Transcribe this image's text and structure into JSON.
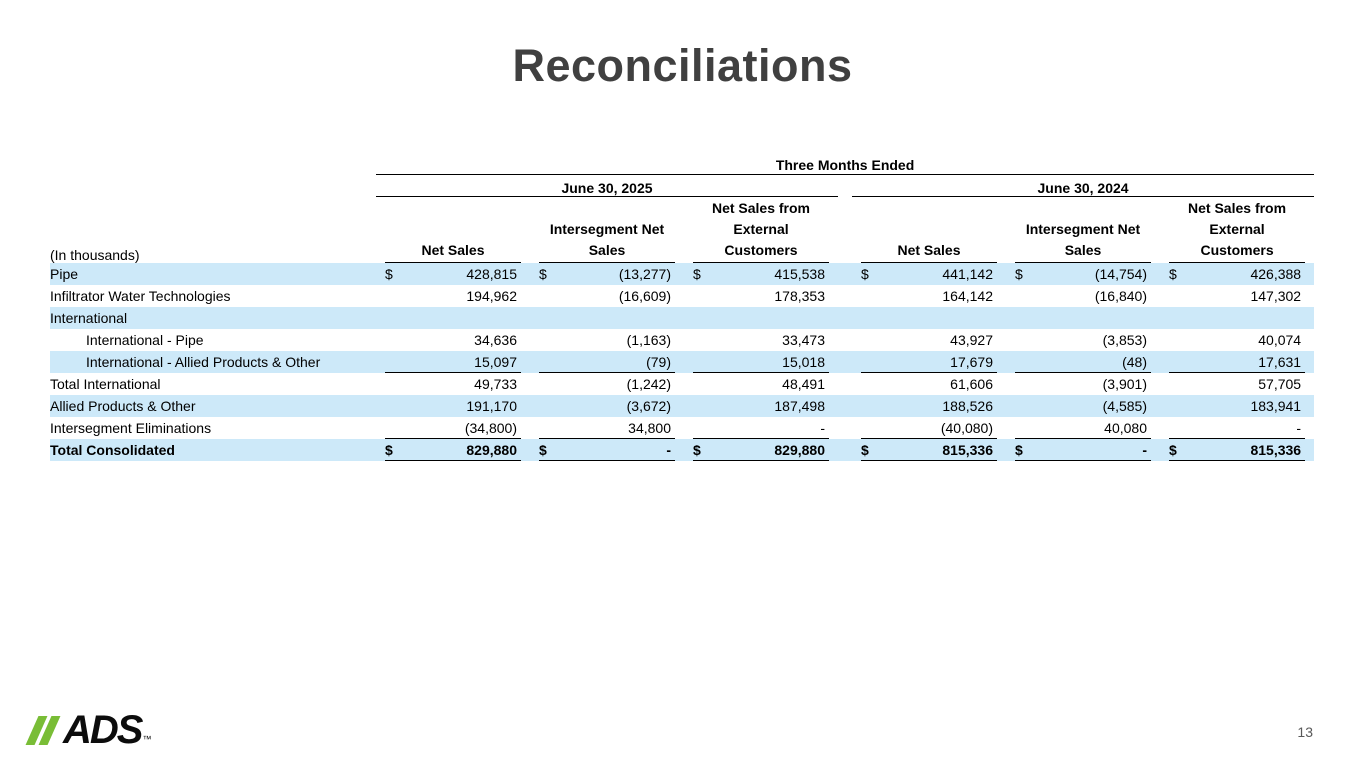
{
  "slide": {
    "title": "Reconciliations",
    "page_number": "13"
  },
  "logo": {
    "brand": "ADS",
    "trademark": "™",
    "accent_green": "#79BD36"
  },
  "colors": {
    "row_band_blue": "#CDE9F9",
    "title_gray": "#404040",
    "border_black": "#000000"
  },
  "table": {
    "in_thousands_label": "(In thousands)",
    "period_header": "Three Months Ended",
    "groups": [
      {
        "label": "June 30, 2025",
        "columns": [
          "Net Sales",
          "Intersegment Net\nSales",
          "Net Sales from\nExternal\nCustomers"
        ]
      },
      {
        "label": "June 30, 2024",
        "columns": [
          "Net Sales",
          "Intersegment Net\nSales",
          "Net Sales from\nExternal\nCustomers"
        ]
      }
    ],
    "rows": [
      {
        "label": "Pipe",
        "indent": false,
        "bold": false,
        "shaded": true,
        "underline": false,
        "cells": [
          {
            "currency": "$",
            "value": "428,815"
          },
          {
            "currency": "$",
            "value": "(13,277)"
          },
          {
            "currency": "$",
            "value": "415,538"
          },
          {
            "currency": "$",
            "value": "441,142"
          },
          {
            "currency": "$",
            "value": "(14,754)"
          },
          {
            "currency": "$",
            "value": "426,388"
          }
        ]
      },
      {
        "label": "Infiltrator Water Technologies",
        "indent": false,
        "bold": false,
        "shaded": false,
        "underline": false,
        "cells": [
          {
            "currency": "",
            "value": "194,962"
          },
          {
            "currency": "",
            "value": "(16,609)"
          },
          {
            "currency": "",
            "value": "178,353"
          },
          {
            "currency": "",
            "value": "164,142"
          },
          {
            "currency": "",
            "value": "(16,840)"
          },
          {
            "currency": "",
            "value": "147,302"
          }
        ]
      },
      {
        "label": "International",
        "indent": false,
        "bold": false,
        "shaded": true,
        "underline": false,
        "cells": [
          {
            "currency": "",
            "value": ""
          },
          {
            "currency": "",
            "value": ""
          },
          {
            "currency": "",
            "value": ""
          },
          {
            "currency": "",
            "value": ""
          },
          {
            "currency": "",
            "value": ""
          },
          {
            "currency": "",
            "value": ""
          }
        ]
      },
      {
        "label": "International - Pipe",
        "indent": true,
        "bold": false,
        "shaded": false,
        "underline": false,
        "cells": [
          {
            "currency": "",
            "value": "34,636"
          },
          {
            "currency": "",
            "value": "(1,163)"
          },
          {
            "currency": "",
            "value": "33,473"
          },
          {
            "currency": "",
            "value": "43,927"
          },
          {
            "currency": "",
            "value": "(3,853)"
          },
          {
            "currency": "",
            "value": "40,074"
          }
        ]
      },
      {
        "label": "International - Allied Products & Other",
        "indent": true,
        "bold": false,
        "shaded": true,
        "underline": true,
        "cells": [
          {
            "currency": "",
            "value": "15,097"
          },
          {
            "currency": "",
            "value": "(79)"
          },
          {
            "currency": "",
            "value": "15,018"
          },
          {
            "currency": "",
            "value": "17,679"
          },
          {
            "currency": "",
            "value": "(48)"
          },
          {
            "currency": "",
            "value": "17,631"
          }
        ]
      },
      {
        "label": "Total International",
        "indent": false,
        "bold": false,
        "shaded": false,
        "underline": false,
        "cells": [
          {
            "currency": "",
            "value": "49,733"
          },
          {
            "currency": "",
            "value": "(1,242)"
          },
          {
            "currency": "",
            "value": "48,491"
          },
          {
            "currency": "",
            "value": "61,606"
          },
          {
            "currency": "",
            "value": "(3,901)"
          },
          {
            "currency": "",
            "value": "57,705"
          }
        ]
      },
      {
        "label": "Allied Products & Other",
        "indent": false,
        "bold": false,
        "shaded": true,
        "underline": false,
        "cells": [
          {
            "currency": "",
            "value": "191,170"
          },
          {
            "currency": "",
            "value": "(3,672)"
          },
          {
            "currency": "",
            "value": "187,498"
          },
          {
            "currency": "",
            "value": "188,526"
          },
          {
            "currency": "",
            "value": "(4,585)"
          },
          {
            "currency": "",
            "value": "183,941"
          }
        ]
      },
      {
        "label": "Intersegment Eliminations",
        "indent": false,
        "bold": false,
        "shaded": false,
        "underline": true,
        "cells": [
          {
            "currency": "",
            "value": "(34,800)"
          },
          {
            "currency": "",
            "value": "34,800"
          },
          {
            "currency": "",
            "value": "-"
          },
          {
            "currency": "",
            "value": "(40,080)"
          },
          {
            "currency": "",
            "value": "40,080"
          },
          {
            "currency": "",
            "value": "-"
          }
        ]
      },
      {
        "label": "Total Consolidated",
        "indent": false,
        "bold": true,
        "shaded": true,
        "underline": true,
        "cells": [
          {
            "currency": "$",
            "value": "829,880"
          },
          {
            "currency": "$",
            "value": "-"
          },
          {
            "currency": "$",
            "value": "829,880"
          },
          {
            "currency": "$",
            "value": "815,336"
          },
          {
            "currency": "$",
            "value": "-"
          },
          {
            "currency": "$",
            "value": "815,336"
          }
        ]
      }
    ]
  }
}
